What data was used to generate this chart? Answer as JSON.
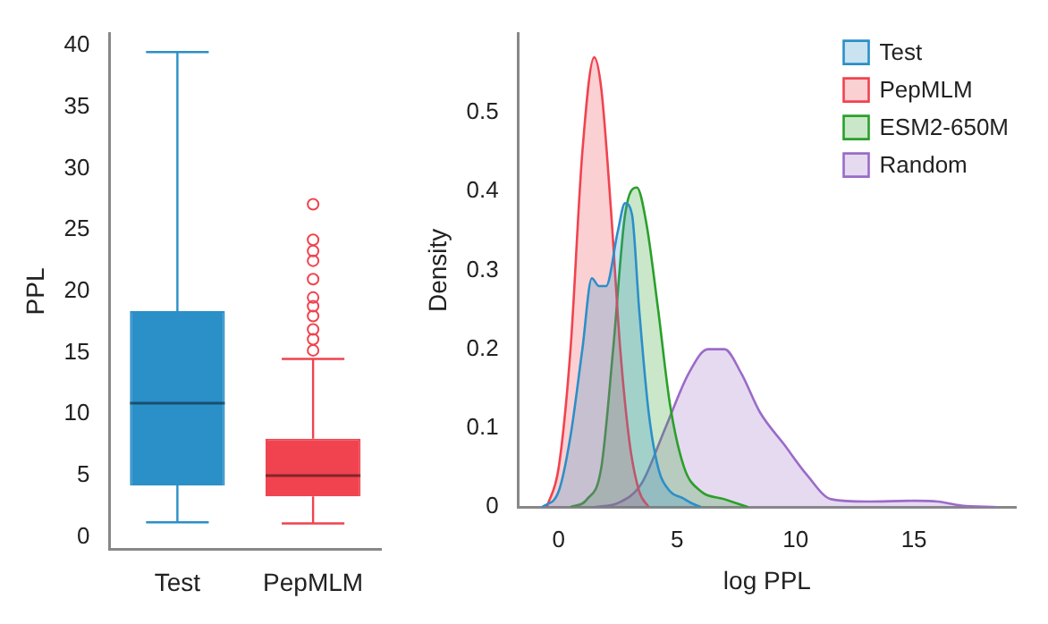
{
  "chart_data": [
    {
      "type": "box",
      "ylabel": "PPL",
      "categories": [
        "Test",
        "PepMLM"
      ],
      "ylim": [
        -1,
        41
      ],
      "yticks": [
        0,
        5,
        10,
        15,
        20,
        25,
        30,
        35,
        40
      ],
      "grid": false,
      "series": [
        {
          "colors": [
            "#2b8fc8",
            "#f0434f"
          ],
          "boxes": [
            {
              "low": 1.2,
              "q1": 4.2,
              "median": 10.9,
              "q3": 18.4,
              "high": 39.5
            },
            {
              "low": 1.1,
              "q1": 3.3,
              "median": 5.0,
              "q3": 8.0,
              "high": 14.5,
              "outliers": [
                15.2,
                16.1,
                16.9,
                18.0,
                18.8,
                19.5,
                21.0,
                22.5,
                23.3,
                24.2,
                27.1
              ]
            }
          ]
        }
      ]
    },
    {
      "type": "area",
      "xlabel": "log PPL",
      "ylabel": "Density",
      "xlim": [
        -1.7,
        19.3
      ],
      "xticks": [
        0,
        5,
        10,
        15
      ],
      "ylim": [
        0,
        0.6
      ],
      "yticks": [
        0,
        0.1,
        0.2,
        0.3,
        0.4,
        0.5
      ],
      "grid": false,
      "legend": "top right",
      "series": [
        {
          "name": "Test",
          "color": "#2b8fc8",
          "x": [
            -0.7,
            0,
            0.5,
            1,
            1.4,
            1.7,
            2.0,
            2.5,
            2.8,
            3.1,
            3.4,
            3.8,
            4.2,
            4.7,
            5.2,
            5.6,
            6
          ],
          "values": [
            0,
            0.02,
            0.09,
            0.2,
            0.29,
            0.28,
            0.28,
            0.35,
            0.385,
            0.37,
            0.25,
            0.12,
            0.05,
            0.02,
            0.012,
            0.005,
            0
          ]
        },
        {
          "name": "PepMLM",
          "color": "#f0434f",
          "x": [
            -0.5,
            0,
            0.5,
            1,
            1.5,
            1.8,
            2.2,
            2.6,
            3,
            3.4,
            3.8
          ],
          "values": [
            0,
            0.05,
            0.2,
            0.45,
            0.57,
            0.53,
            0.38,
            0.2,
            0.08,
            0.02,
            0
          ]
        },
        {
          "name": "ESM2-650M",
          "color": "#2aa02a",
          "x": [
            0.5,
            1.2,
            1.8,
            2.3,
            2.8,
            3.3,
            3.7,
            4.2,
            4.7,
            5.3,
            6,
            7,
            8
          ],
          "values": [
            0,
            0.01,
            0.05,
            0.2,
            0.37,
            0.405,
            0.36,
            0.25,
            0.13,
            0.05,
            0.02,
            0.01,
            0
          ]
        },
        {
          "name": "Random",
          "color": "#9b6bc8",
          "x": [
            1.5,
            2.5,
            3.5,
            4.5,
            5.5,
            6.3,
            7,
            7.7,
            8.5,
            9.5,
            10.5,
            11.5,
            13,
            15,
            16,
            17,
            18.5
          ],
          "values": [
            0,
            0.005,
            0.03,
            0.1,
            0.17,
            0.2,
            0.2,
            0.17,
            0.12,
            0.08,
            0.04,
            0.01,
            0.007,
            0.008,
            0.007,
            0.002,
            0
          ]
        }
      ]
    }
  ]
}
